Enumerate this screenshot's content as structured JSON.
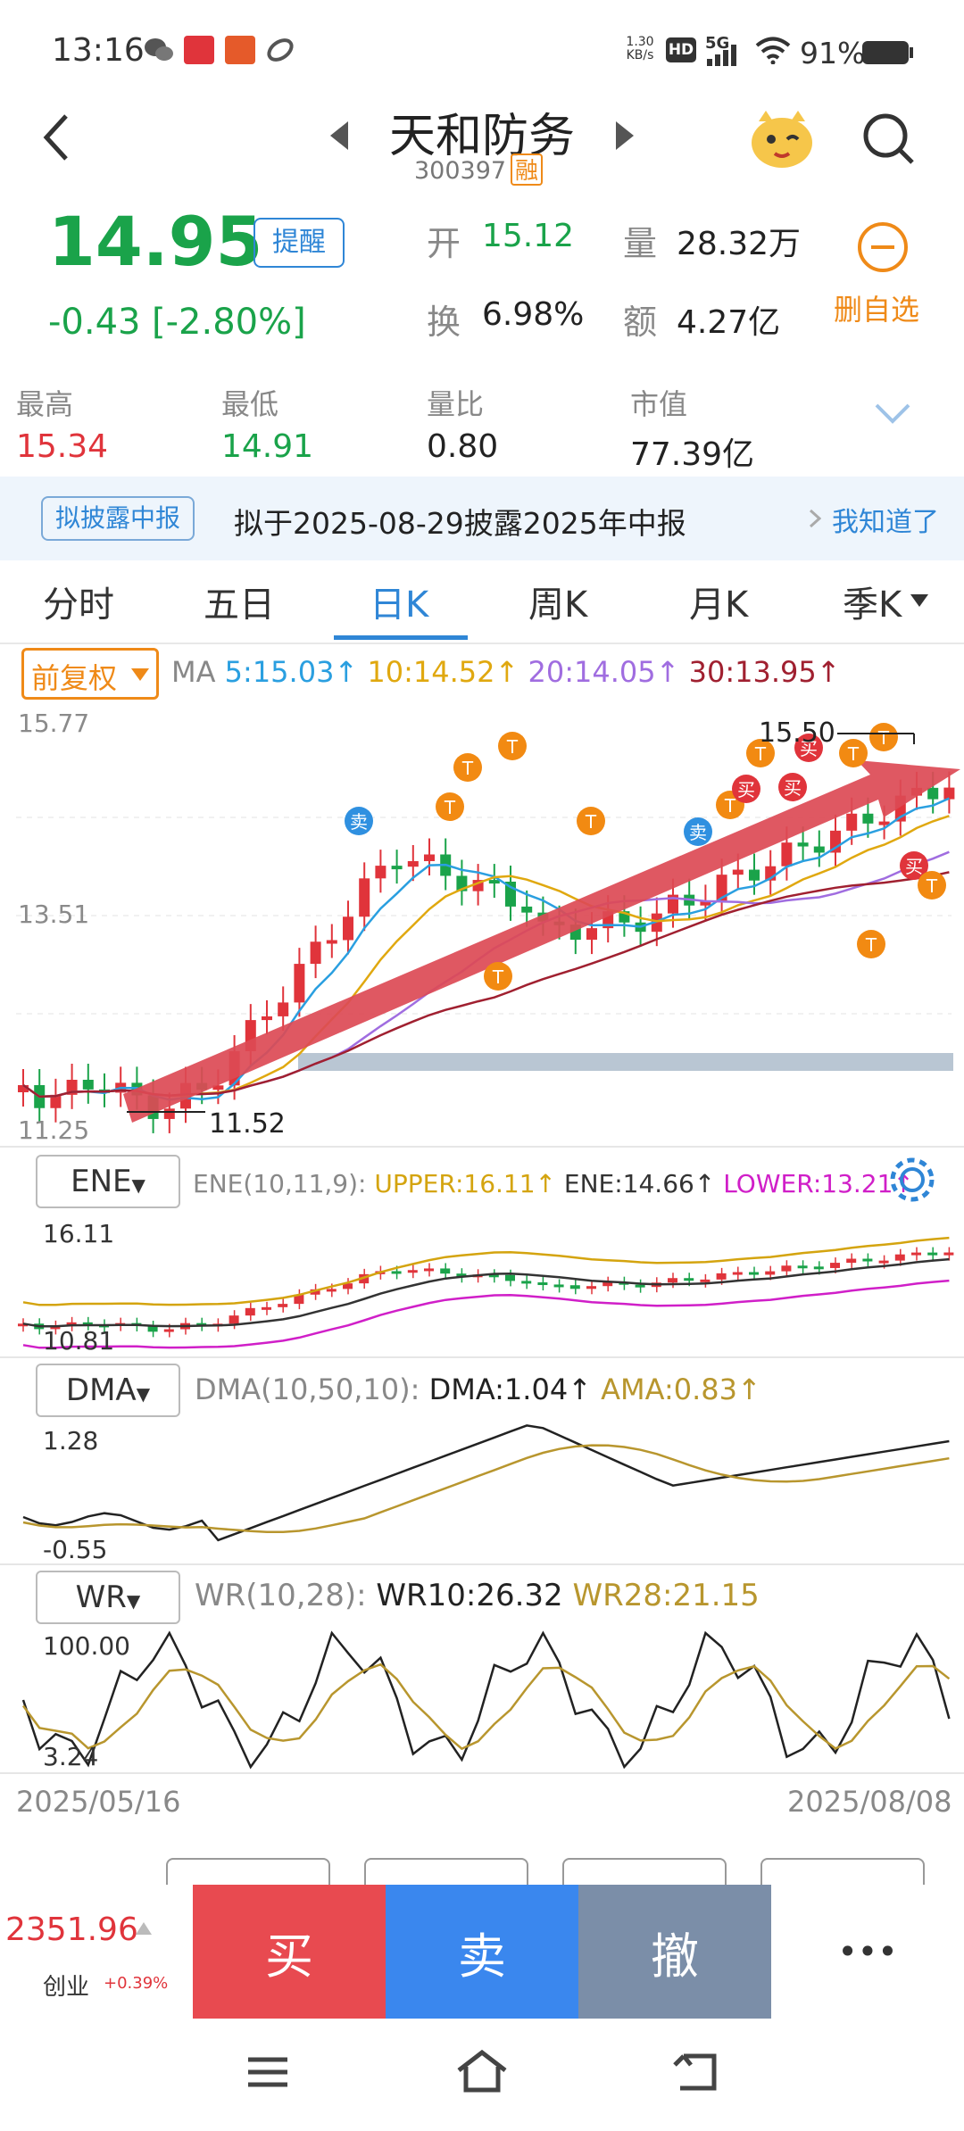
{
  "status": {
    "time": "13:16",
    "net_speed_top": "1.30",
    "net_speed_bottom": "KB/s",
    "hd": "HD",
    "signal": "5G",
    "battery": "91%"
  },
  "header": {
    "stock_name": "天和防务",
    "stock_code": "300397",
    "margin_badge": "融"
  },
  "price": {
    "current": "14.95",
    "change": "-0.43",
    "change_pct": "[-2.80%]",
    "alert_button": "提醒",
    "open_label": "开",
    "open_value": "15.12",
    "volume_label": "量",
    "volume_value": "28.32万",
    "turnover_label": "换",
    "turnover_value": "6.98%",
    "amount_label": "额",
    "amount_value": "4.27亿",
    "delete_watch": "删自选"
  },
  "stats": [
    {
      "label": "最高",
      "value": "15.34"
    },
    {
      "label": "最低",
      "value": "14.91"
    },
    {
      "label": "量比",
      "value": "0.80"
    },
    {
      "label": "市值",
      "value": "77.39亿"
    }
  ],
  "notice": {
    "tag": "拟披露中报",
    "text": "拟于2025-08-29披露2025年中报",
    "action": "我知道了"
  },
  "tabs": [
    "分时",
    "五日",
    "日K",
    "周K",
    "月K",
    "季K"
  ],
  "active_tab": "日K",
  "kline": {
    "adjust": "前复权",
    "ma_title": "MA",
    "ma5": "5:15.03",
    "ma10": "10:14.52",
    "ma20": "20:14.05",
    "ma30": "30:13.95",
    "y_top": "15.77",
    "y_mid": "13.51",
    "y_bottom": "11.25",
    "high_mark": "15.50",
    "low_mark": "11.52",
    "sell_tag": "卖",
    "buy_tag": "买",
    "t_tag": "T",
    "colors": {
      "up": "#e0343b",
      "down": "#1aa34a",
      "ma5": "#2a9fe0",
      "ma10": "#e0a80f",
      "ma20": "#a06de0",
      "ma30": "#a02030",
      "arrow": "#dc4a55"
    }
  },
  "ene": {
    "name": "ENE",
    "params": "ENE(10,11,9):",
    "upper": "UPPER:16.11",
    "mid": "ENE:14.66",
    "lower": "LOWER:13.21",
    "y_top": "16.11",
    "y_bottom": "10.81"
  },
  "dma": {
    "name": "DMA",
    "params": "DMA(10,50,10):",
    "dma": "DMA:1.04",
    "ama": "AMA:0.83",
    "y_top": "1.28",
    "y_bottom": "-0.55"
  },
  "wr": {
    "name": "WR",
    "params": "WR(10,28):",
    "wr10": "WR10:26.32",
    "wr28": "WR28:21.15",
    "y_top": "100.00",
    "y_bottom": "3.24"
  },
  "dates": {
    "start": "2025/05/16",
    "end": "2025/08/08"
  },
  "bottom": {
    "index_value": "2351.96",
    "index_name": "创业",
    "index_change": "+0.39%",
    "buy": "买",
    "sell": "卖",
    "cancel": "撤",
    "more": "•••"
  }
}
